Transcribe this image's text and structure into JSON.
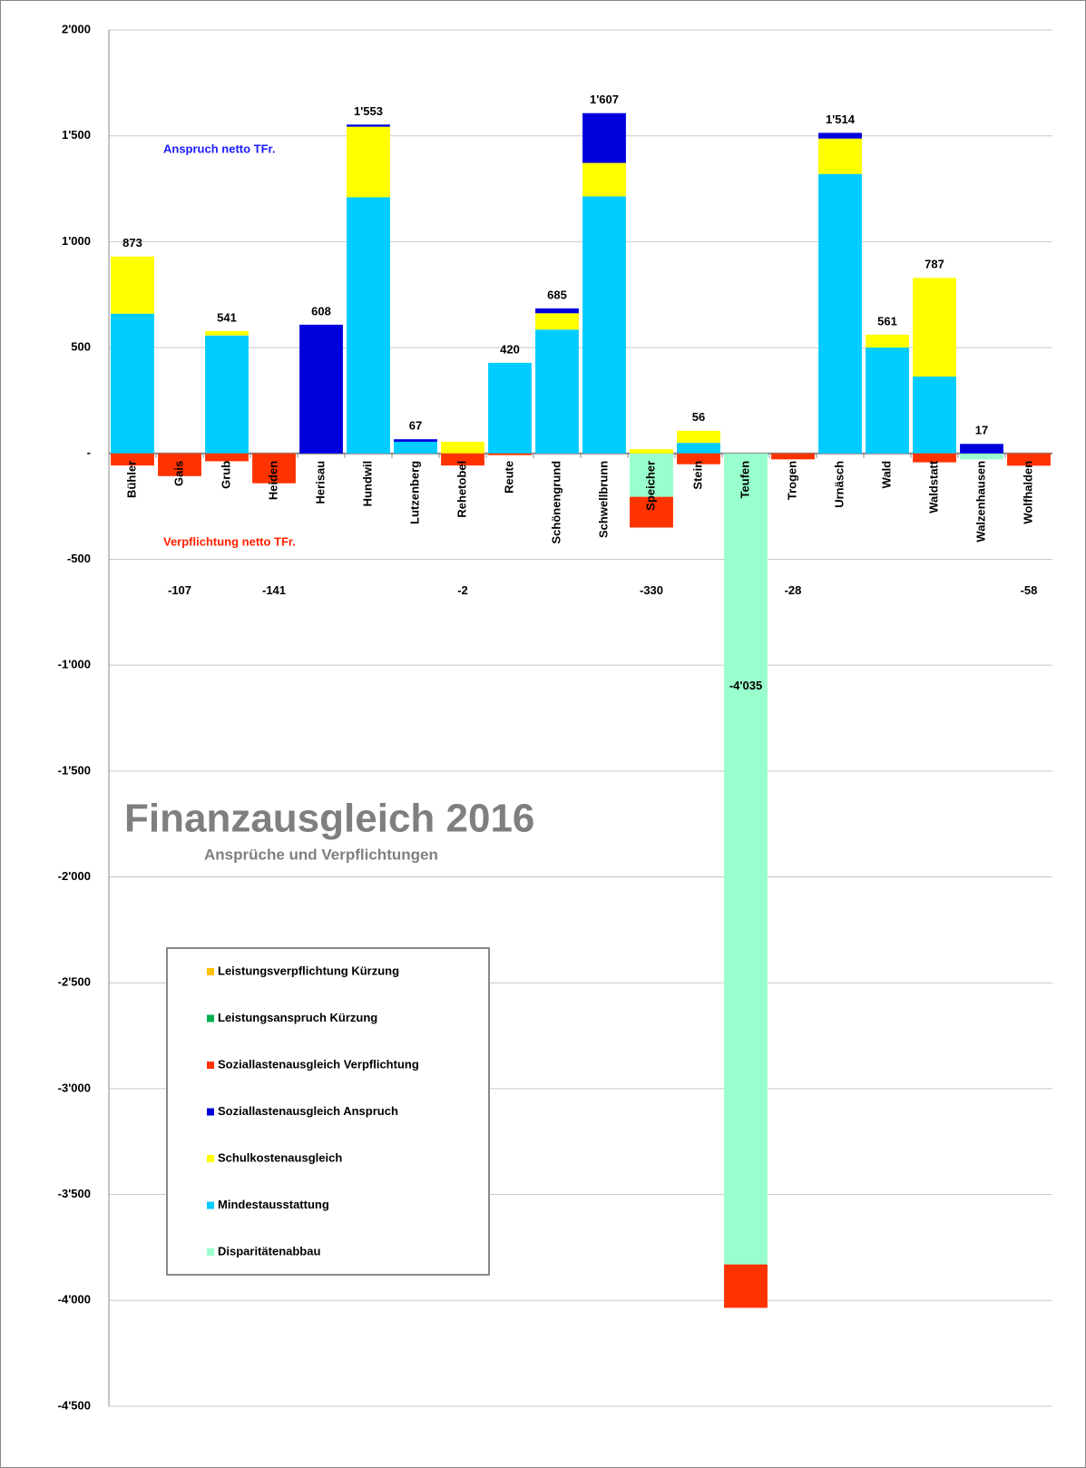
{
  "chart_data": {
    "type": "stacked-bar",
    "title": "Finanzausgleich 2016",
    "subtitle": "Ansprüche und Verpflichtungen",
    "annotations": [
      "Anspruch netto  TFr.",
      "Verpflichtung netto TFr."
    ],
    "categories": [
      "Bühler",
      "Gais",
      "Grub",
      "Heiden",
      "Herisau",
      "Hundwil",
      "Lutzenberg",
      "Rehetobel",
      "Reute",
      "Schönengrund",
      "Schwellbrunn",
      "Speicher",
      "Stein",
      "Teufen",
      "Trogen",
      "Urnäsch",
      "Wald",
      "Waldstatt",
      "Walzenhausen",
      "Wolfhalden"
    ],
    "series": [
      {
        "name": "Leistungsverpflichtung Kürzung",
        "color": "#ffc000",
        "values": [
          null,
          null,
          null,
          null,
          null,
          null,
          null,
          null,
          null,
          null,
          null,
          null,
          null,
          null,
          null,
          null,
          null,
          null,
          null,
          null
        ]
      },
      {
        "name": "Leistungsanspruch Kürzung",
        "color": "#00b050",
        "values": [
          null,
          null,
          null,
          null,
          null,
          null,
          null,
          null,
          null,
          null,
          null,
          null,
          null,
          null,
          null,
          null,
          null,
          null,
          null,
          null
        ]
      },
      {
        "name": "Soziallastenausgleich Verpflichtung",
        "color": "#ff3300",
        "values": [
          -57,
          -107,
          -37,
          -141,
          null,
          null,
          null,
          -57,
          -8,
          null,
          null,
          -145,
          -51,
          -205,
          -28,
          null,
          null,
          -42,
          null,
          -58
        ]
      },
      {
        "name": "Soziallastenausgleich Anspruch",
        "color": "#0000dd",
        "values": [
          null,
          null,
          null,
          null,
          608,
          10,
          12,
          null,
          null,
          23,
          235,
          null,
          null,
          null,
          null,
          27,
          null,
          null,
          45,
          null
        ]
      },
      {
        "name": "Schulkostenausgleich",
        "color": "#ffff00",
        "values": [
          270,
          null,
          21,
          null,
          null,
          333,
          null,
          55,
          null,
          77,
          158,
          20,
          57,
          null,
          null,
          167,
          61,
          466,
          null,
          null
        ]
      },
      {
        "name": "Mindestausstattung",
        "color": "#00ccff",
        "values": [
          660,
          null,
          557,
          null,
          null,
          1210,
          55,
          null,
          428,
          585,
          1214,
          null,
          50,
          null,
          null,
          1320,
          500,
          363,
          null,
          null
        ]
      },
      {
        "name": "Disparitätenabbau",
        "color": "#99ffcc",
        "values": [
          null,
          null,
          null,
          null,
          null,
          null,
          null,
          null,
          null,
          null,
          null,
          -205,
          null,
          -3830,
          null,
          null,
          null,
          null,
          -28,
          null
        ]
      }
    ],
    "totals": [
      873,
      -107,
      541,
      -141,
      608,
      1553,
      67,
      -2,
      420,
      685,
      1607,
      -330,
      56,
      -4035,
      -28,
      1514,
      561,
      787,
      17,
      -58
    ],
    "value_labels": [
      "873",
      "-107",
      "541",
      "-141",
      "608",
      "1'553",
      "67",
      "-2",
      "420",
      "685",
      "1'607",
      "-330",
      "56",
      "-4'035",
      "-28",
      "1'514",
      "561",
      "787",
      "17",
      "-58"
    ],
    "ylim": [
      -4500,
      2000
    ],
    "yticks": [
      {
        "value": 2000,
        "label": "2'000"
      },
      {
        "value": 1500,
        "label": "1'500"
      },
      {
        "value": 1000,
        "label": "1'000"
      },
      500,
      {
        "value": 0,
        "label": "-"
      },
      -500,
      {
        "value": -1000,
        "label": "-1'000"
      },
      {
        "value": -1500,
        "label": "-1'500"
      },
      {
        "value": -2000,
        "label": "-2'000"
      },
      {
        "value": -2500,
        "label": "-2'500"
      },
      {
        "value": -3000,
        "label": "-3'000"
      },
      {
        "value": -3500,
        "label": "-3'500"
      },
      {
        "value": -4000,
        "label": "-4'000"
      },
      {
        "value": -4500,
        "label": "-4'500"
      }
    ],
    "grid": true
  }
}
